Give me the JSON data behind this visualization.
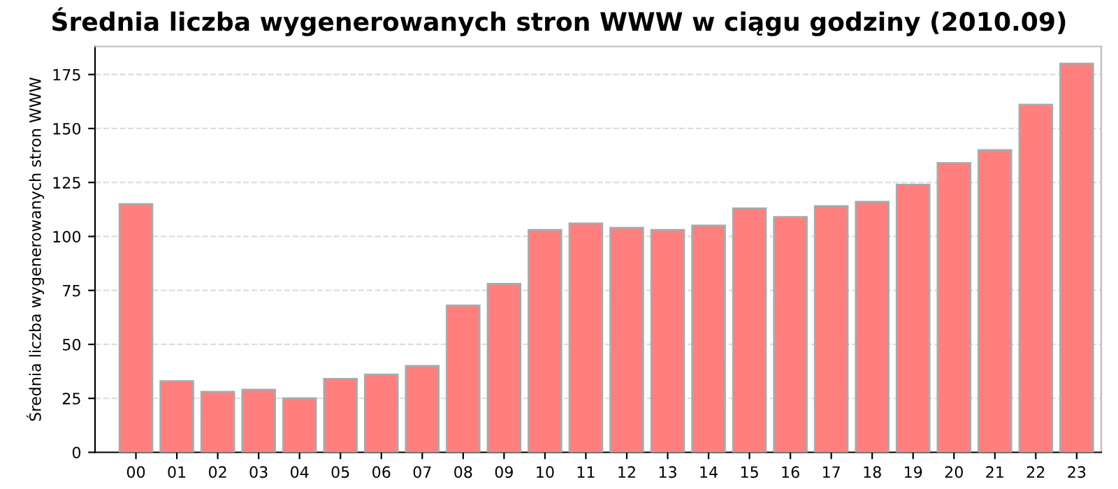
{
  "chart_data": {
    "type": "bar",
    "title": "Średnia liczba wygenerowanych stron WWW w ciągu godziny (2010.09)",
    "ylabel": "Średnia liczba wygenerowanych stron WWW",
    "categories": [
      "00",
      "01",
      "02",
      "03",
      "04",
      "05",
      "06",
      "07",
      "08",
      "09",
      "10",
      "11",
      "12",
      "13",
      "14",
      "15",
      "16",
      "17",
      "18",
      "19",
      "20",
      "21",
      "22",
      "23"
    ],
    "values": [
      115,
      33,
      28,
      29,
      25,
      34,
      36,
      40,
      68,
      78,
      103,
      106,
      104,
      103,
      105,
      113,
      109,
      114,
      116,
      124,
      134,
      140,
      161,
      180
    ],
    "color": "#ff7f7f",
    "ylim": [
      0,
      188
    ],
    "yticks": [
      0,
      25,
      50,
      75,
      100,
      125,
      150,
      175
    ],
    "grid": "y"
  }
}
